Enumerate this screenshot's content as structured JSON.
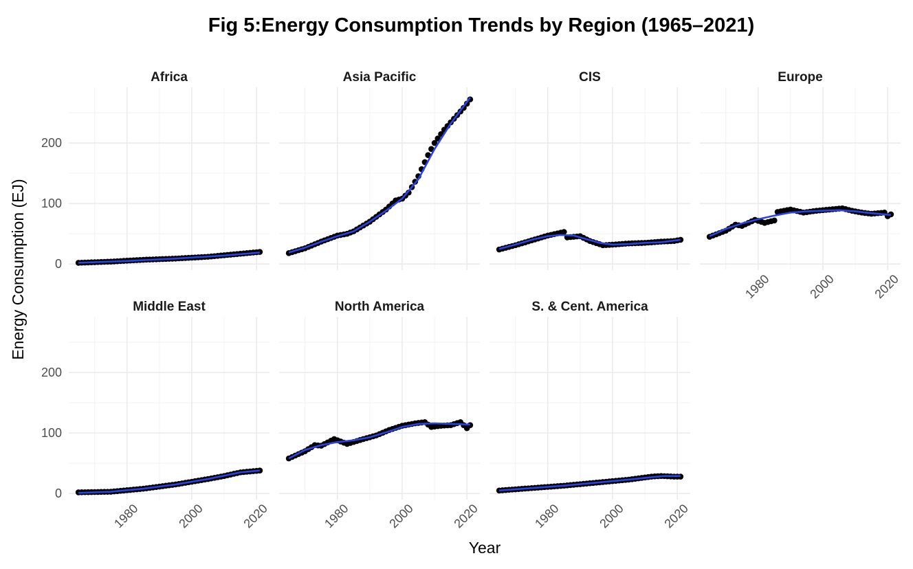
{
  "chart_data": {
    "type": "scatter",
    "title": "Fig 5:Energy Consumption Trends by Region (1965–2021)",
    "xlabel": "Year",
    "ylabel": "Energy Consumption (EJ)",
    "xlim": [
      1962,
      2024
    ],
    "ylim": [
      -10,
      292
    ],
    "x_ticks": [
      1980,
      2000,
      2020
    ],
    "y_ticks": [
      0,
      100,
      200
    ],
    "smooth_color": "#2a44e6",
    "point_color": "#000000",
    "grid": true,
    "legend": "none",
    "facets": [
      {
        "name": "Africa",
        "anchors": [
          [
            1965,
            2
          ],
          [
            1975,
            4
          ],
          [
            1985,
            7
          ],
          [
            1995,
            9
          ],
          [
            2005,
            12
          ],
          [
            2015,
            17
          ],
          [
            2021,
            20
          ]
        ],
        "smooth": [
          [
            1965,
            2
          ],
          [
            1980,
            5
          ],
          [
            1995,
            9
          ],
          [
            2010,
            14
          ],
          [
            2021,
            19
          ]
        ]
      },
      {
        "name": "Asia Pacific",
        "anchors": [
          [
            1965,
            18
          ],
          [
            1970,
            26
          ],
          [
            1975,
            37
          ],
          [
            1980,
            47
          ],
          [
            1983,
            50
          ],
          [
            1985,
            54
          ],
          [
            1990,
            70
          ],
          [
            1995,
            90
          ],
          [
            1998,
            105
          ],
          [
            2000,
            108
          ],
          [
            2002,
            118
          ],
          [
            2005,
            145
          ],
          [
            2008,
            180
          ],
          [
            2010,
            200
          ],
          [
            2013,
            222
          ],
          [
            2016,
            240
          ],
          [
            2019,
            258
          ],
          [
            2021,
            272
          ]
        ],
        "smooth": [
          [
            1965,
            19
          ],
          [
            1970,
            27
          ],
          [
            1975,
            37
          ],
          [
            1980,
            46
          ],
          [
            1985,
            54
          ],
          [
            1990,
            70
          ],
          [
            1995,
            88
          ],
          [
            2000,
            108
          ],
          [
            2005,
            140
          ],
          [
            2010,
            190
          ],
          [
            2015,
            232
          ],
          [
            2021,
            275
          ]
        ]
      },
      {
        "name": "CIS",
        "anchors": [
          [
            1965,
            24
          ],
          [
            1970,
            31
          ],
          [
            1975,
            39
          ],
          [
            1980,
            47
          ],
          [
            1985,
            53
          ],
          [
            1986,
            44
          ],
          [
            1990,
            46
          ],
          [
            1993,
            38
          ],
          [
            1997,
            31
          ],
          [
            2000,
            32
          ],
          [
            2005,
            34
          ],
          [
            2010,
            35
          ],
          [
            2015,
            37
          ],
          [
            2019,
            38
          ],
          [
            2021,
            40
          ]
        ],
        "smooth": [
          [
            1965,
            25
          ],
          [
            1970,
            32
          ],
          [
            1975,
            40
          ],
          [
            1980,
            46
          ],
          [
            1984,
            48
          ],
          [
            1988,
            47
          ],
          [
            1992,
            41
          ],
          [
            1996,
            35
          ],
          [
            2000,
            32
          ],
          [
            2005,
            33
          ],
          [
            2010,
            35
          ],
          [
            2015,
            36
          ],
          [
            2021,
            40
          ]
        ]
      },
      {
        "name": "Europe",
        "anchors": [
          [
            1965,
            45
          ],
          [
            1970,
            55
          ],
          [
            1973,
            65
          ],
          [
            1975,
            63
          ],
          [
            1979,
            73
          ],
          [
            1982,
            68
          ],
          [
            1985,
            72
          ],
          [
            1986,
            86
          ],
          [
            1990,
            90
          ],
          [
            1994,
            85
          ],
          [
            1998,
            88
          ],
          [
            2002,
            90
          ],
          [
            2006,
            92
          ],
          [
            2009,
            88
          ],
          [
            2012,
            85
          ],
          [
            2015,
            83
          ],
          [
            2019,
            85
          ],
          [
            2020,
            79
          ],
          [
            2021,
            82
          ]
        ],
        "smooth": [
          [
            1965,
            46
          ],
          [
            1970,
            58
          ],
          [
            1975,
            67
          ],
          [
            1980,
            74
          ],
          [
            1985,
            80
          ],
          [
            1990,
            85
          ],
          [
            1995,
            87
          ],
          [
            2000,
            88
          ],
          [
            2005,
            89
          ],
          [
            2010,
            87
          ],
          [
            2015,
            84
          ],
          [
            2021,
            81
          ]
        ]
      },
      {
        "name": "Middle East",
        "anchors": [
          [
            1965,
            2
          ],
          [
            1975,
            3
          ],
          [
            1985,
            8
          ],
          [
            1995,
            15
          ],
          [
            2005,
            24
          ],
          [
            2010,
            29
          ],
          [
            2015,
            35
          ],
          [
            2021,
            38
          ]
        ],
        "smooth": [
          [
            1965,
            1
          ],
          [
            1975,
            3
          ],
          [
            1985,
            8
          ],
          [
            1995,
            15
          ],
          [
            2005,
            24
          ],
          [
            2015,
            35
          ],
          [
            2021,
            38
          ]
        ]
      },
      {
        "name": "North America",
        "anchors": [
          [
            1965,
            58
          ],
          [
            1970,
            70
          ],
          [
            1973,
            80
          ],
          [
            1975,
            79
          ],
          [
            1979,
            90
          ],
          [
            1983,
            82
          ],
          [
            1988,
            90
          ],
          [
            1992,
            96
          ],
          [
            1996,
            105
          ],
          [
            2000,
            112
          ],
          [
            2004,
            116
          ],
          [
            2007,
            118
          ],
          [
            2009,
            110
          ],
          [
            2012,
            112
          ],
          [
            2015,
            113
          ],
          [
            2018,
            118
          ],
          [
            2020,
            108
          ],
          [
            2021,
            113
          ]
        ],
        "smooth": [
          [
            1965,
            58
          ],
          [
            1970,
            72
          ],
          [
            1975,
            80
          ],
          [
            1980,
            85
          ],
          [
            1985,
            88
          ],
          [
            1990,
            93
          ],
          [
            1995,
            101
          ],
          [
            2000,
            110
          ],
          [
            2005,
            115
          ],
          [
            2010,
            116
          ],
          [
            2015,
            115
          ],
          [
            2021,
            114
          ]
        ]
      },
      {
        "name": "S. & Cent. America",
        "anchors": [
          [
            1965,
            5
          ],
          [
            1975,
            9
          ],
          [
            1985,
            13
          ],
          [
            1995,
            18
          ],
          [
            2005,
            23
          ],
          [
            2012,
            28
          ],
          [
            2015,
            29
          ],
          [
            2019,
            28
          ],
          [
            2021,
            28
          ]
        ],
        "smooth": [
          [
            1965,
            5
          ],
          [
            1975,
            9
          ],
          [
            1985,
            13
          ],
          [
            1995,
            18
          ],
          [
            2005,
            23
          ],
          [
            2012,
            27
          ],
          [
            2016,
            29
          ],
          [
            2021,
            29
          ]
        ]
      }
    ]
  }
}
